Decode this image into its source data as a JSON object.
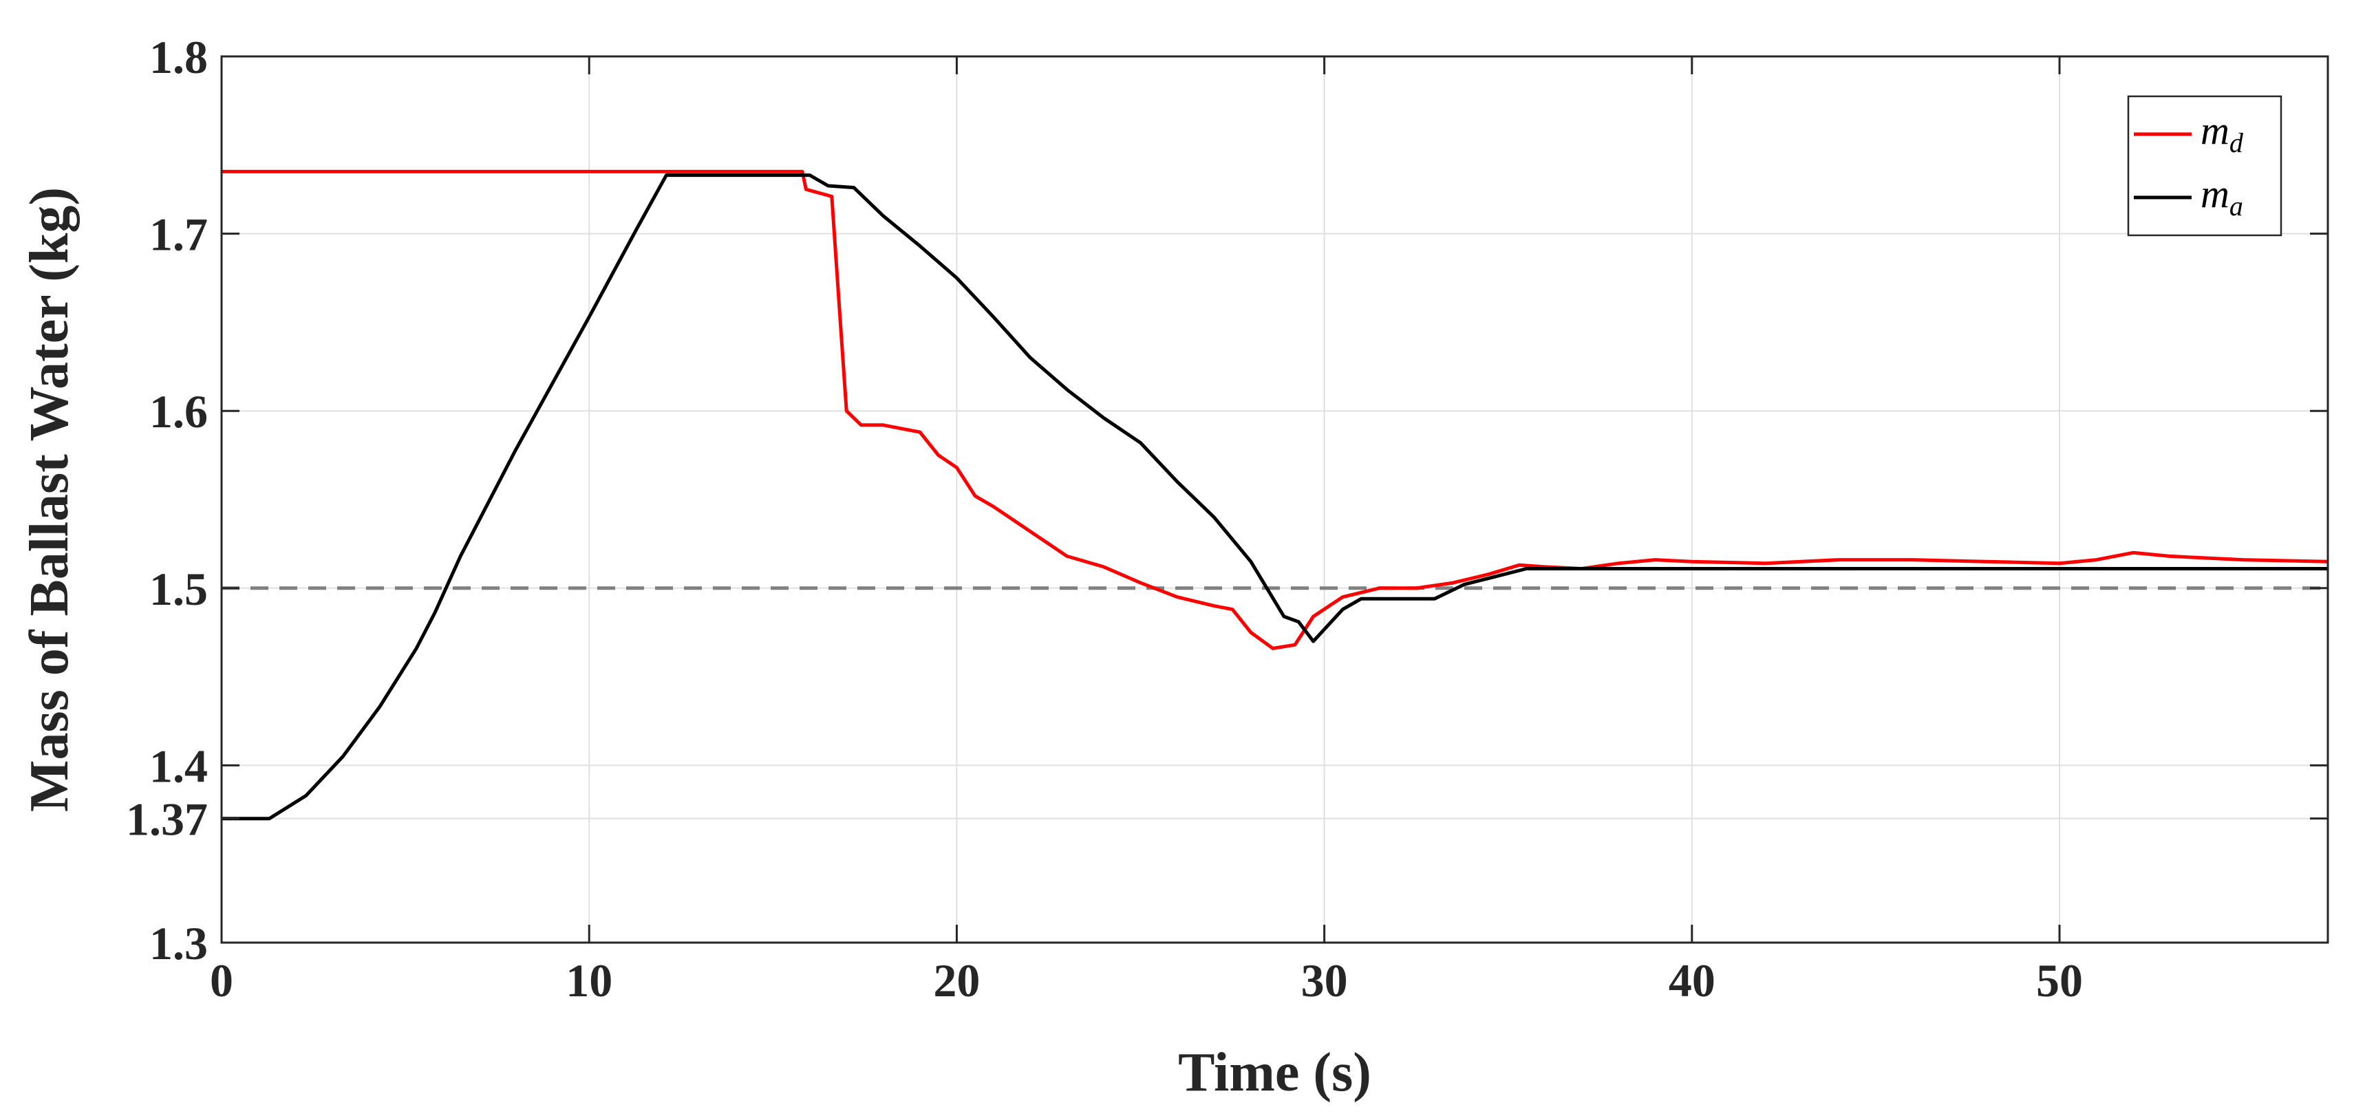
{
  "chart_data": {
    "type": "line",
    "title": "",
    "xlabel": "Time (s)",
    "ylabel": "Mass of Ballast Water (kg)",
    "xlim": [
      0,
      57.3
    ],
    "ylim": [
      1.3,
      1.8
    ],
    "xticks": [
      0,
      10,
      20,
      30,
      40,
      50
    ],
    "xtick_labels": [
      "0",
      "10",
      "20",
      "30",
      "40",
      "50"
    ],
    "yticks": [
      1.3,
      1.37,
      1.4,
      1.5,
      1.6,
      1.7,
      1.8
    ],
    "ytick_labels": [
      "1.3",
      "1.37",
      "1.4",
      "1.5",
      "1.6",
      "1.7",
      "1.8"
    ],
    "grid": true,
    "legend_position": "top-right",
    "reference_line": {
      "y": 1.5,
      "style": "dashed",
      "color": "#808080"
    },
    "series": [
      {
        "name": "m_d",
        "legend_main": "m",
        "legend_sub": "d",
        "color": "#ff0000",
        "points": [
          [
            0,
            1.735
          ],
          [
            15.8,
            1.735
          ],
          [
            15.9,
            1.725
          ],
          [
            16.6,
            1.721
          ],
          [
            16.8,
            1.66
          ],
          [
            17.0,
            1.6
          ],
          [
            17.4,
            1.592
          ],
          [
            18.0,
            1.592
          ],
          [
            19.0,
            1.588
          ],
          [
            19.5,
            1.575
          ],
          [
            20.0,
            1.568
          ],
          [
            20.5,
            1.552
          ],
          [
            21.0,
            1.546
          ],
          [
            22.0,
            1.532
          ],
          [
            23.0,
            1.518
          ],
          [
            24.0,
            1.512
          ],
          [
            25.0,
            1.503
          ],
          [
            26.0,
            1.495
          ],
          [
            27.0,
            1.49
          ],
          [
            27.5,
            1.488
          ],
          [
            28.0,
            1.475
          ],
          [
            28.6,
            1.466
          ],
          [
            29.2,
            1.468
          ],
          [
            29.7,
            1.484
          ],
          [
            30.5,
            1.495
          ],
          [
            31.5,
            1.5
          ],
          [
            32.5,
            1.5
          ],
          [
            33.5,
            1.503
          ],
          [
            34.5,
            1.508
          ],
          [
            35.3,
            1.513
          ],
          [
            36.0,
            1.512
          ],
          [
            37.0,
            1.511
          ],
          [
            38.0,
            1.514
          ],
          [
            39.0,
            1.516
          ],
          [
            40.0,
            1.515
          ],
          [
            42.0,
            1.514
          ],
          [
            44.0,
            1.516
          ],
          [
            46.0,
            1.516
          ],
          [
            48.0,
            1.515
          ],
          [
            50.0,
            1.514
          ],
          [
            51.0,
            1.516
          ],
          [
            52.0,
            1.52
          ],
          [
            53.0,
            1.518
          ],
          [
            55.0,
            1.516
          ],
          [
            57.3,
            1.515
          ]
        ]
      },
      {
        "name": "m_a",
        "legend_main": "m",
        "legend_sub": "a",
        "color": "#000000",
        "points": [
          [
            0,
            1.37
          ],
          [
            1.3,
            1.37
          ],
          [
            2.3,
            1.383
          ],
          [
            3.3,
            1.405
          ],
          [
            4.3,
            1.433
          ],
          [
            5.3,
            1.466
          ],
          [
            5.8,
            1.486
          ],
          [
            6.5,
            1.518
          ],
          [
            8.0,
            1.578
          ],
          [
            10.0,
            1.653
          ],
          [
            11.3,
            1.703
          ],
          [
            12.1,
            1.733
          ],
          [
            15.7,
            1.733
          ],
          [
            16.0,
            1.733
          ],
          [
            16.5,
            1.727
          ],
          [
            17.2,
            1.726
          ],
          [
            18.0,
            1.71
          ],
          [
            19.0,
            1.693
          ],
          [
            20.0,
            1.675
          ],
          [
            21.0,
            1.653
          ],
          [
            22.0,
            1.63
          ],
          [
            23.0,
            1.612
          ],
          [
            24.0,
            1.596
          ],
          [
            25.0,
            1.582
          ],
          [
            26.0,
            1.56
          ],
          [
            27.0,
            1.54
          ],
          [
            28.0,
            1.515
          ],
          [
            28.9,
            1.484
          ],
          [
            29.3,
            1.481
          ],
          [
            29.7,
            1.47
          ],
          [
            30.5,
            1.488
          ],
          [
            31.0,
            1.494
          ],
          [
            33.0,
            1.494
          ],
          [
            33.8,
            1.502
          ],
          [
            35.5,
            1.511
          ],
          [
            38.0,
            1.511
          ],
          [
            42.0,
            1.511
          ],
          [
            46.0,
            1.511
          ],
          [
            50.0,
            1.511
          ],
          [
            57.3,
            1.511
          ]
        ]
      }
    ]
  }
}
